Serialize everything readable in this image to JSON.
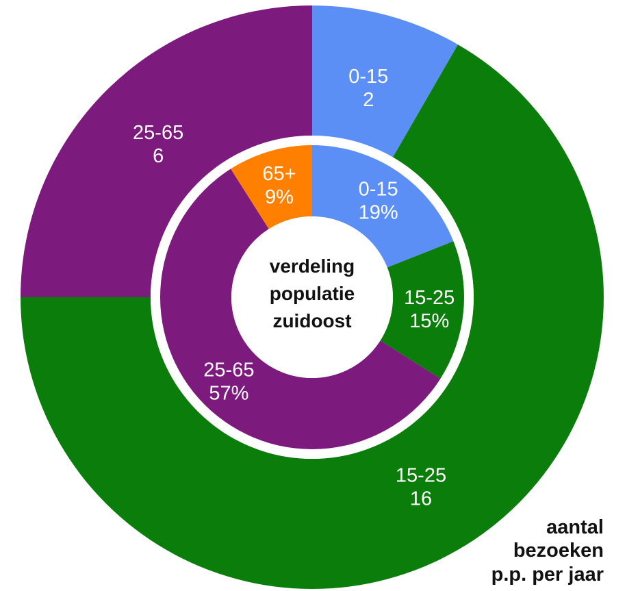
{
  "chart_data": {
    "type": "pie",
    "variant": "nested-donut",
    "center_title": [
      "verdeling",
      "populatie",
      "zuidoost"
    ],
    "outer_note": [
      "aantal",
      "bezoeken",
      "p.p. per jaar"
    ],
    "colors": {
      "0-15": "#5b8ff5",
      "15-25": "#0b7d0b",
      "25-65": "#7d1a7d",
      "65+": "#ff7f00"
    },
    "outer_ring": {
      "slices": [
        {
          "label": "0-15",
          "value": 2,
          "value_text": "2"
        },
        {
          "label": "15-25",
          "value": 16,
          "value_text": "16"
        },
        {
          "label": "25-65",
          "value": 6,
          "value_text": "6"
        }
      ]
    },
    "inner_ring": {
      "slices": [
        {
          "label": "0-15",
          "value": 19,
          "value_text": "19%"
        },
        {
          "label": "15-25",
          "value": 15,
          "value_text": "15%"
        },
        {
          "label": "25-65",
          "value": 57,
          "value_text": "57%"
        },
        {
          "label": "65+",
          "value": 9,
          "value_text": "9%"
        }
      ]
    }
  }
}
